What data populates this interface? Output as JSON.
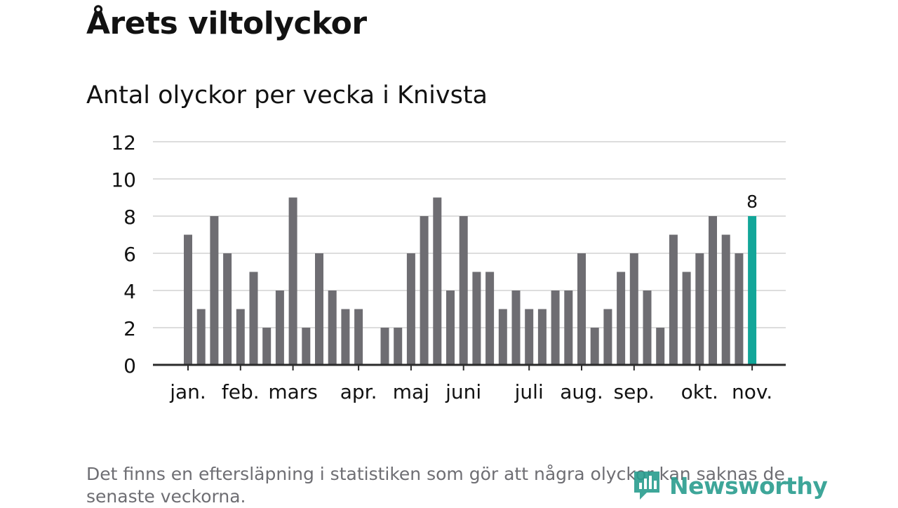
{
  "title": "Årets viltolyckor",
  "subtitle": "Antal olyckor per vecka i Knivsta",
  "footnote": "Det finns en eftersläpning i statistiken som gör att några olyckor kan saknas de senaste veckorna.",
  "logo_text": "Newsworthy",
  "colors": {
    "bar": "#6e6d72",
    "highlight": "#12a699",
    "grid": "#dddddd",
    "axis": "#2b2b2b",
    "text": "#121212",
    "logo": "#2a9d8f"
  },
  "chart_data": {
    "type": "bar",
    "title": "Antal olyckor per vecka i Knivsta",
    "xlabel": "",
    "ylabel": "",
    "ylim": [
      0,
      12
    ],
    "yticks": [
      0,
      2,
      4,
      6,
      8,
      10,
      12
    ],
    "grid": true,
    "week_values": [
      7,
      3,
      8,
      6,
      3,
      5,
      2,
      4,
      9,
      2,
      6,
      4,
      3,
      3,
      0,
      2,
      2,
      6,
      8,
      9,
      4,
      8,
      5,
      5,
      3,
      4,
      3,
      3,
      4,
      4,
      6,
      2,
      3,
      5,
      6,
      4,
      2,
      7,
      5,
      6,
      8,
      7,
      6,
      8
    ],
    "highlight_index": 43,
    "highlight_label": "8",
    "month_labels": [
      {
        "label": "jan.",
        "week_position": 0.5
      },
      {
        "label": "feb.",
        "week_position": 4.5
      },
      {
        "label": "mars",
        "week_position": 8.5
      },
      {
        "label": "apr.",
        "week_position": 13.5
      },
      {
        "label": "maj",
        "week_position": 17.5
      },
      {
        "label": "juni",
        "week_position": 21.5
      },
      {
        "label": "juli",
        "week_position": 26.5
      },
      {
        "label": "aug.",
        "week_position": 30.5
      },
      {
        "label": "sep.",
        "week_position": 34.5
      },
      {
        "label": "okt.",
        "week_position": 39.5
      },
      {
        "label": "nov.",
        "week_position": 43.5
      }
    ]
  }
}
